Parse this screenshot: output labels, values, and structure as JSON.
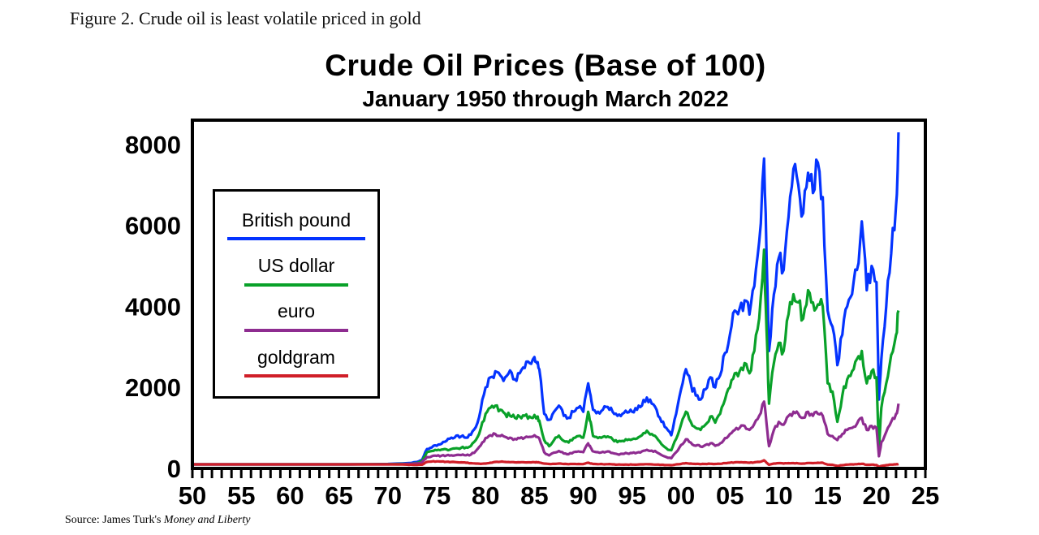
{
  "figure": {
    "caption": "Figure 2. Crude oil is least volatile priced in gold"
  },
  "source": {
    "prefix": "Source: James Turk's",
    "italic": "Money and Liberty"
  },
  "chart_data": {
    "type": "line",
    "title": "Crude Oil Prices (Base of 100)",
    "subtitle": "January 1950 through March 2022",
    "xlim": [
      1950,
      2025
    ],
    "ylim": [
      0,
      8600
    ],
    "grid": false,
    "legend_position": "upper-left",
    "x_ticks": {
      "values": [
        1950,
        1955,
        1960,
        1965,
        1970,
        1975,
        1980,
        1985,
        1990,
        1995,
        2000,
        2005,
        2010,
        2015,
        2020,
        2025
      ],
      "labels": [
        "50",
        "55",
        "60",
        "65",
        "70",
        "75",
        "80",
        "85",
        "90",
        "95",
        "00",
        "05",
        "10",
        "15",
        "20",
        "25"
      ]
    },
    "y_ticks": {
      "values": [
        0,
        2000,
        4000,
        6000,
        8000
      ],
      "labels": [
        "0",
        "2000",
        "4000",
        "6000",
        "8000"
      ]
    },
    "x": [
      1950,
      1952,
      1954,
      1956,
      1958,
      1960,
      1962,
      1964,
      1966,
      1968,
      1970,
      1971,
      1971.5,
      1972,
      1972.5,
      1973,
      1973.5,
      1974,
      1974.5,
      1975,
      1975.5,
      1976,
      1976.5,
      1977,
      1977.5,
      1978,
      1978.5,
      1979,
      1979.5,
      1980,
      1980.5,
      1981,
      1981.5,
      1982,
      1982.5,
      1983,
      1983.5,
      1984,
      1984.5,
      1985,
      1985.25,
      1985.5,
      1986,
      1986.5,
      1987,
      1987.5,
      1988,
      1988.5,
      1989,
      1989.5,
      1990,
      1990.5,
      1990.75,
      1991,
      1991.5,
      1992,
      1992.5,
      1993,
      1993.5,
      1994,
      1994.5,
      1995,
      1995.5,
      1996,
      1996.5,
      1997,
      1997.5,
      1998,
      1998.5,
      1999,
      1999.5,
      2000,
      2000.5,
      2001,
      2001.5,
      2002,
      2002.5,
      2003,
      2003.5,
      2004,
      2004.5,
      2005,
      2005.5,
      2006,
      2006.5,
      2007,
      2007.5,
      2008,
      2008.5,
      2008.75,
      2009,
      2009.5,
      2010,
      2010.5,
      2011,
      2011.5,
      2012,
      2012.5,
      2013,
      2013.5,
      2014,
      2014.5,
      2015,
      2015.5,
      2016,
      2016.5,
      2017,
      2017.5,
      2018,
      2018.5,
      2019,
      2019.5,
      2020,
      2020.25,
      2020.5,
      2021,
      2021.5,
      2022,
      2022.25
    ],
    "series": [
      {
        "name": "British pound",
        "color": "#0433FF",
        "values": [
          100,
          100,
          100,
          100,
          100,
          100,
          100,
          100,
          100,
          105,
          110,
          120,
          125,
          130,
          140,
          160,
          210,
          480,
          520,
          560,
          610,
          680,
          760,
          810,
          790,
          760,
          830,
          1020,
          1450,
          2000,
          2250,
          2400,
          2300,
          2250,
          2420,
          2200,
          2350,
          2480,
          2600,
          2750,
          2600,
          2450,
          1350,
          1200,
          1400,
          1550,
          1300,
          1250,
          1400,
          1500,
          1400,
          2100,
          1800,
          1450,
          1400,
          1450,
          1520,
          1400,
          1300,
          1350,
          1380,
          1400,
          1450,
          1550,
          1750,
          1600,
          1450,
          1150,
          1000,
          820,
          1350,
          1950,
          2450,
          2100,
          1800,
          1700,
          1950,
          2250,
          2000,
          2300,
          2850,
          3300,
          3900,
          3950,
          4150,
          3800,
          4500,
          5600,
          7650,
          5200,
          2900,
          4300,
          5200,
          4900,
          6200,
          7400,
          7000,
          6300,
          7300,
          6800,
          7550,
          6700,
          3900,
          3500,
          2550,
          3300,
          4000,
          4300,
          4900,
          6100,
          4400,
          5000,
          4600,
          1700,
          2700,
          4000,
          5300,
          6500,
          8300
        ]
      },
      {
        "name": "US dollar",
        "color": "#09A129",
        "values": [
          100,
          100,
          100,
          100,
          100,
          100,
          100,
          100,
          100,
          102,
          105,
          110,
          112,
          115,
          120,
          135,
          175,
          400,
          430,
          450,
          465,
          470,
          480,
          500,
          510,
          520,
          555,
          700,
          980,
          1350,
          1500,
          1550,
          1450,
          1350,
          1300,
          1250,
          1280,
          1300,
          1280,
          1320,
          1250,
          1180,
          700,
          550,
          700,
          810,
          680,
          640,
          750,
          800,
          760,
          1400,
          1150,
          800,
          750,
          780,
          790,
          720,
          650,
          680,
          700,
          720,
          740,
          820,
          930,
          850,
          760,
          600,
          500,
          450,
          730,
          1080,
          1400,
          1150,
          1000,
          950,
          1080,
          1280,
          1130,
          1350,
          1700,
          2000,
          2350,
          2400,
          2600,
          2350,
          2900,
          3700,
          5400,
          3400,
          1600,
          2600,
          3100,
          2900,
          3800,
          4300,
          4100,
          3700,
          4400,
          4100,
          4050,
          4000,
          2100,
          1900,
          1150,
          1800,
          2200,
          2400,
          2700,
          2900,
          2100,
          2400,
          2250,
          500,
          1500,
          2100,
          2800,
          3300,
          3900
        ]
      },
      {
        "name": "euro",
        "color": "#8E2C90",
        "values": [
          100,
          100,
          100,
          100,
          100,
          100,
          100,
          100,
          100,
          100,
          100,
          105,
          107,
          110,
          115,
          122,
          150,
          280,
          300,
          310,
          315,
          320,
          325,
          330,
          330,
          325,
          340,
          430,
          570,
          750,
          820,
          850,
          800,
          780,
          760,
          730,
          745,
          760,
          780,
          820,
          780,
          740,
          400,
          320,
          390,
          430,
          370,
          350,
          400,
          420,
          400,
          620,
          520,
          420,
          400,
          410,
          420,
          380,
          350,
          360,
          370,
          380,
          390,
          420,
          460,
          440,
          400,
          330,
          280,
          250,
          400,
          580,
          720,
          640,
          560,
          540,
          580,
          620,
          560,
          620,
          750,
          850,
          950,
          1000,
          1050,
          950,
          1100,
          1300,
          1650,
          1100,
          550,
          950,
          1150,
          1080,
          1300,
          1400,
          1350,
          1250,
          1400,
          1300,
          1350,
          1300,
          850,
          800,
          700,
          850,
          950,
          1000,
          1100,
          1250,
          950,
          1050,
          1000,
          300,
          650,
          900,
          1150,
          1350,
          1600
        ]
      },
      {
        "name": "goldgram",
        "color": "#D01E28",
        "values": [
          100,
          100,
          100,
          100,
          100,
          100,
          100,
          100,
          100,
          100,
          100,
          98,
          97,
          92,
          90,
          88,
          92,
          160,
          170,
          175,
          170,
          165,
          160,
          155,
          150,
          140,
          130,
          120,
          112,
          120,
          140,
          160,
          165,
          160,
          155,
          150,
          150,
          150,
          150,
          155,
          150,
          145,
          120,
          110,
          115,
          120,
          110,
          105,
          110,
          110,
          108,
          140,
          120,
          110,
          105,
          105,
          105,
          100,
          95,
          95,
          95,
          95,
          95,
          100,
          105,
          100,
          95,
          90,
          85,
          80,
          100,
          110,
          130,
          120,
          110,
          105,
          110,
          115,
          110,
          115,
          130,
          140,
          150,
          150,
          150,
          140,
          150,
          160,
          200,
          140,
          90,
          120,
          130,
          120,
          130,
          130,
          125,
          120,
          135,
          130,
          140,
          140,
          95,
          90,
          65,
          80,
          95,
          100,
          105,
          115,
          90,
          95,
          85,
          40,
          60,
          80,
          95,
          100,
          110
        ]
      }
    ]
  }
}
